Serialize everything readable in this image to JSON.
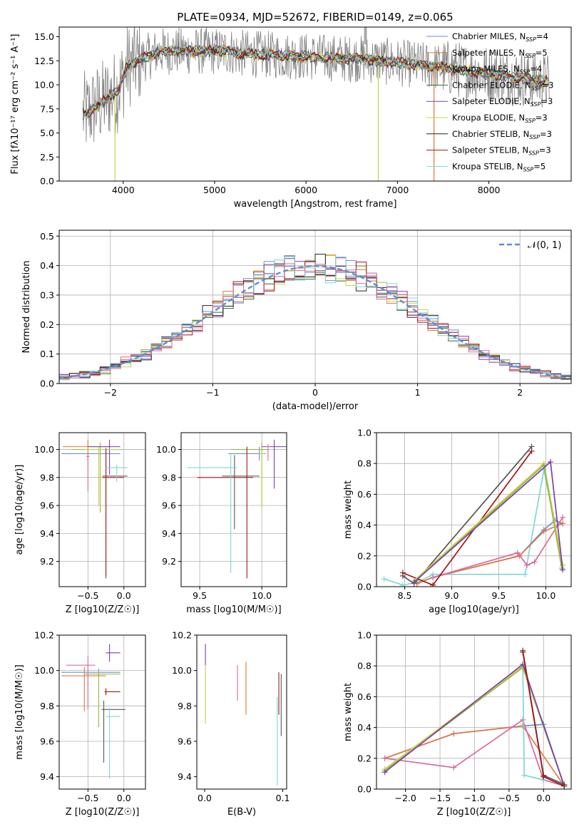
{
  "title": "PLATE=0934, MJD=52672, FIBERID=0149, z=0.065",
  "colors": [
    "#6a8fd6",
    "#e07840",
    "#9ab83a",
    "#7a3fb0",
    "#c8d24a",
    "#222222",
    "#a01818",
    "#80d6d6",
    "#d86aa0",
    "#555555"
  ],
  "chart_data": [
    {
      "id": "spectrum",
      "type": "line",
      "xlabel": "wavelength [Angstrom, rest frame]",
      "ylabel": "Flux [fλ10⁻¹⁷ erg cm⁻² s⁻¹ A⁻¹]",
      "xlim": [
        3300,
        8900
      ],
      "ylim": [
        0,
        16
      ],
      "xticks": [
        4000,
        5000,
        6000,
        7000,
        8000
      ],
      "yticks": [
        0.0,
        2.5,
        5.0,
        7.5,
        10.0,
        12.5,
        15.0
      ],
      "legend_position": "top-right",
      "series": [
        {
          "name": "Chabrier MILES, N_SSP=4",
          "color": "#6a8fd6"
        },
        {
          "name": "Salpeter MILES, N_SSP=5",
          "color": "#e07840"
        },
        {
          "name": "Kroupa MILES, N_SSP=4",
          "color": "#c8882a"
        },
        {
          "name": "Chabrier ELODIE, N_SSP=3",
          "color": "#2e6b2e"
        },
        {
          "name": "Salpeter ELODIE, N_SSP=3",
          "color": "#7a3fb0"
        },
        {
          "name": "Kroupa ELODIE, N_SSP=3",
          "color": "#c8d24a"
        },
        {
          "name": "Chabrier STELIB, N_SSP=3",
          "color": "#222222"
        },
        {
          "name": "Salpeter STELIB, N_SSP=3",
          "color": "#a01818"
        },
        {
          "name": "Kroupa STELIB, N_SSP=5",
          "color": "#80d6d6"
        }
      ]
    },
    {
      "id": "residuals",
      "type": "line",
      "xlabel": "(data-model)/error",
      "ylabel": "Normed distribution",
      "xlim": [
        -2.5,
        2.5
      ],
      "ylim": [
        0,
        0.52
      ],
      "xticks": [
        -2,
        -1,
        0,
        1,
        2
      ],
      "yticks": [
        0.0,
        0.1,
        0.2,
        0.3,
        0.4,
        0.5
      ],
      "grid": true,
      "legend": "N(0,1)",
      "legend_position": "top-right"
    },
    {
      "id": "age-vs-Z",
      "type": "scatter",
      "xlabel": "Z [log10(Z/Z☉)]",
      "ylabel": "age [log10(age/yr)]",
      "xlim": [
        -0.9,
        0.3
      ],
      "ylim": [
        9.02,
        10.12
      ],
      "xticks": [
        -0.5,
        0.0
      ],
      "yticks": [
        9.2,
        9.4,
        9.6,
        9.8,
        10.0
      ],
      "grid": true
    },
    {
      "id": "age-vs-mass",
      "type": "scatter",
      "xlabel": "mass [log10(M/M☉)]",
      "ylabel": "",
      "xlim": [
        9.35,
        10.2
      ],
      "ylim": [
        9.02,
        10.12
      ],
      "xticks": [
        9.5,
        10.0
      ],
      "yticks": [
        9.2,
        9.4,
        9.6,
        9.8,
        10.0
      ],
      "grid": true
    },
    {
      "id": "weight-vs-age",
      "type": "line",
      "xlabel": "age [log10(age/yr)]",
      "ylabel": "mass weight",
      "xlim": [
        8.2,
        10.27
      ],
      "ylim": [
        0,
        1
      ],
      "xticks": [
        8.5,
        9.0,
        9.5,
        10.0
      ],
      "yticks": [
        0.0,
        0.2,
        0.4,
        0.6,
        0.8,
        1.0
      ],
      "grid": true
    },
    {
      "id": "mass-vs-Z",
      "type": "scatter",
      "xlabel": "Z [log10(Z/Z☉)]",
      "ylabel": "mass [log10(M/M☉)]",
      "xlim": [
        -0.9,
        0.3
      ],
      "ylim": [
        9.33,
        10.2
      ],
      "xticks": [
        -0.5,
        0.0
      ],
      "yticks": [
        9.4,
        9.6,
        9.8,
        10.0,
        10.2
      ],
      "grid": true
    },
    {
      "id": "mass-vs-ebv",
      "type": "scatter",
      "xlabel": "E(B-V)",
      "ylabel": "",
      "xlim": [
        -0.01,
        0.105
      ],
      "ylim": [
        9.33,
        10.2
      ],
      "xticks": [
        0.0,
        0.1
      ],
      "yticks": [
        9.4,
        9.6,
        9.8,
        10.0,
        10.2
      ],
      "grid": false
    },
    {
      "id": "weight-vs-Z",
      "type": "line",
      "xlabel": "Z [log10(Z/Z☉)]",
      "ylabel": "mass weight",
      "xlim": [
        -2.42,
        0.4
      ],
      "ylim": [
        0,
        1
      ],
      "xticks": [
        -2.0,
        -1.5,
        -1.0,
        -0.5,
        0.0
      ],
      "yticks": [
        0.0,
        0.2,
        0.4,
        0.6,
        0.8,
        1.0
      ],
      "grid": true
    }
  ]
}
